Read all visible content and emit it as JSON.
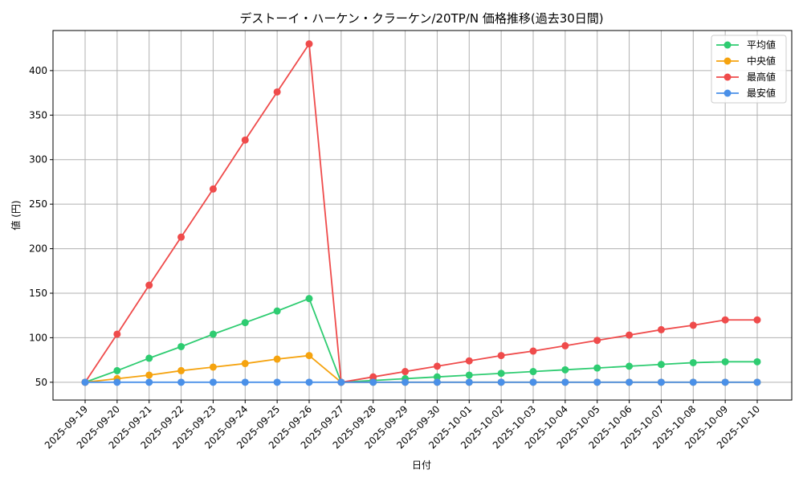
{
  "chart_data": {
    "type": "line",
    "title": "デストーイ・ハーケン・クラーケン/20TP/N 価格推移(過去30日間)",
    "xlabel": "日付",
    "ylabel": "値 (円)",
    "categories": [
      "2025-09-19",
      "2025-09-20",
      "2025-09-21",
      "2025-09-22",
      "2025-09-23",
      "2025-09-24",
      "2025-09-25",
      "2025-09-26",
      "2025-09-27",
      "2025-09-28",
      "2025-09-29",
      "2025-09-30",
      "2025-10-01",
      "2025-10-02",
      "2025-10-03",
      "2025-10-04",
      "2025-10-05",
      "2025-10-06",
      "2025-10-07",
      "2025-10-08",
      "2025-10-09",
      "2025-10-10"
    ],
    "ylim": [
      30,
      445
    ],
    "yticks": [
      50,
      100,
      150,
      200,
      250,
      300,
      350,
      400
    ],
    "grid": true,
    "legend_position": "top-right",
    "series": [
      {
        "name": "平均値",
        "color": "#2ecc71",
        "values": [
          50,
          63,
          77,
          90,
          104,
          117,
          130,
          144,
          50,
          52,
          54,
          56,
          58,
          60,
          62,
          64,
          66,
          68,
          70,
          72,
          73,
          73
        ]
      },
      {
        "name": "中央値",
        "color": "#f5a30f",
        "values": [
          50,
          54,
          58,
          63,
          67,
          71,
          76,
          80,
          50,
          50,
          50,
          50,
          50,
          50,
          50,
          50,
          50,
          50,
          50,
          50,
          50,
          50
        ]
      },
      {
        "name": "最高値",
        "color": "#ef4b4b",
        "values": [
          50,
          104,
          159,
          213,
          267,
          322,
          376,
          430,
          50,
          56,
          62,
          68,
          74,
          80,
          85,
          91,
          97,
          103,
          109,
          114,
          120,
          120
        ]
      },
      {
        "name": "最安値",
        "color": "#4a90e8",
        "values": [
          50,
          50,
          50,
          50,
          50,
          50,
          50,
          50,
          50,
          50,
          50,
          50,
          50,
          50,
          50,
          50,
          50,
          50,
          50,
          50,
          50,
          50
        ]
      }
    ]
  }
}
